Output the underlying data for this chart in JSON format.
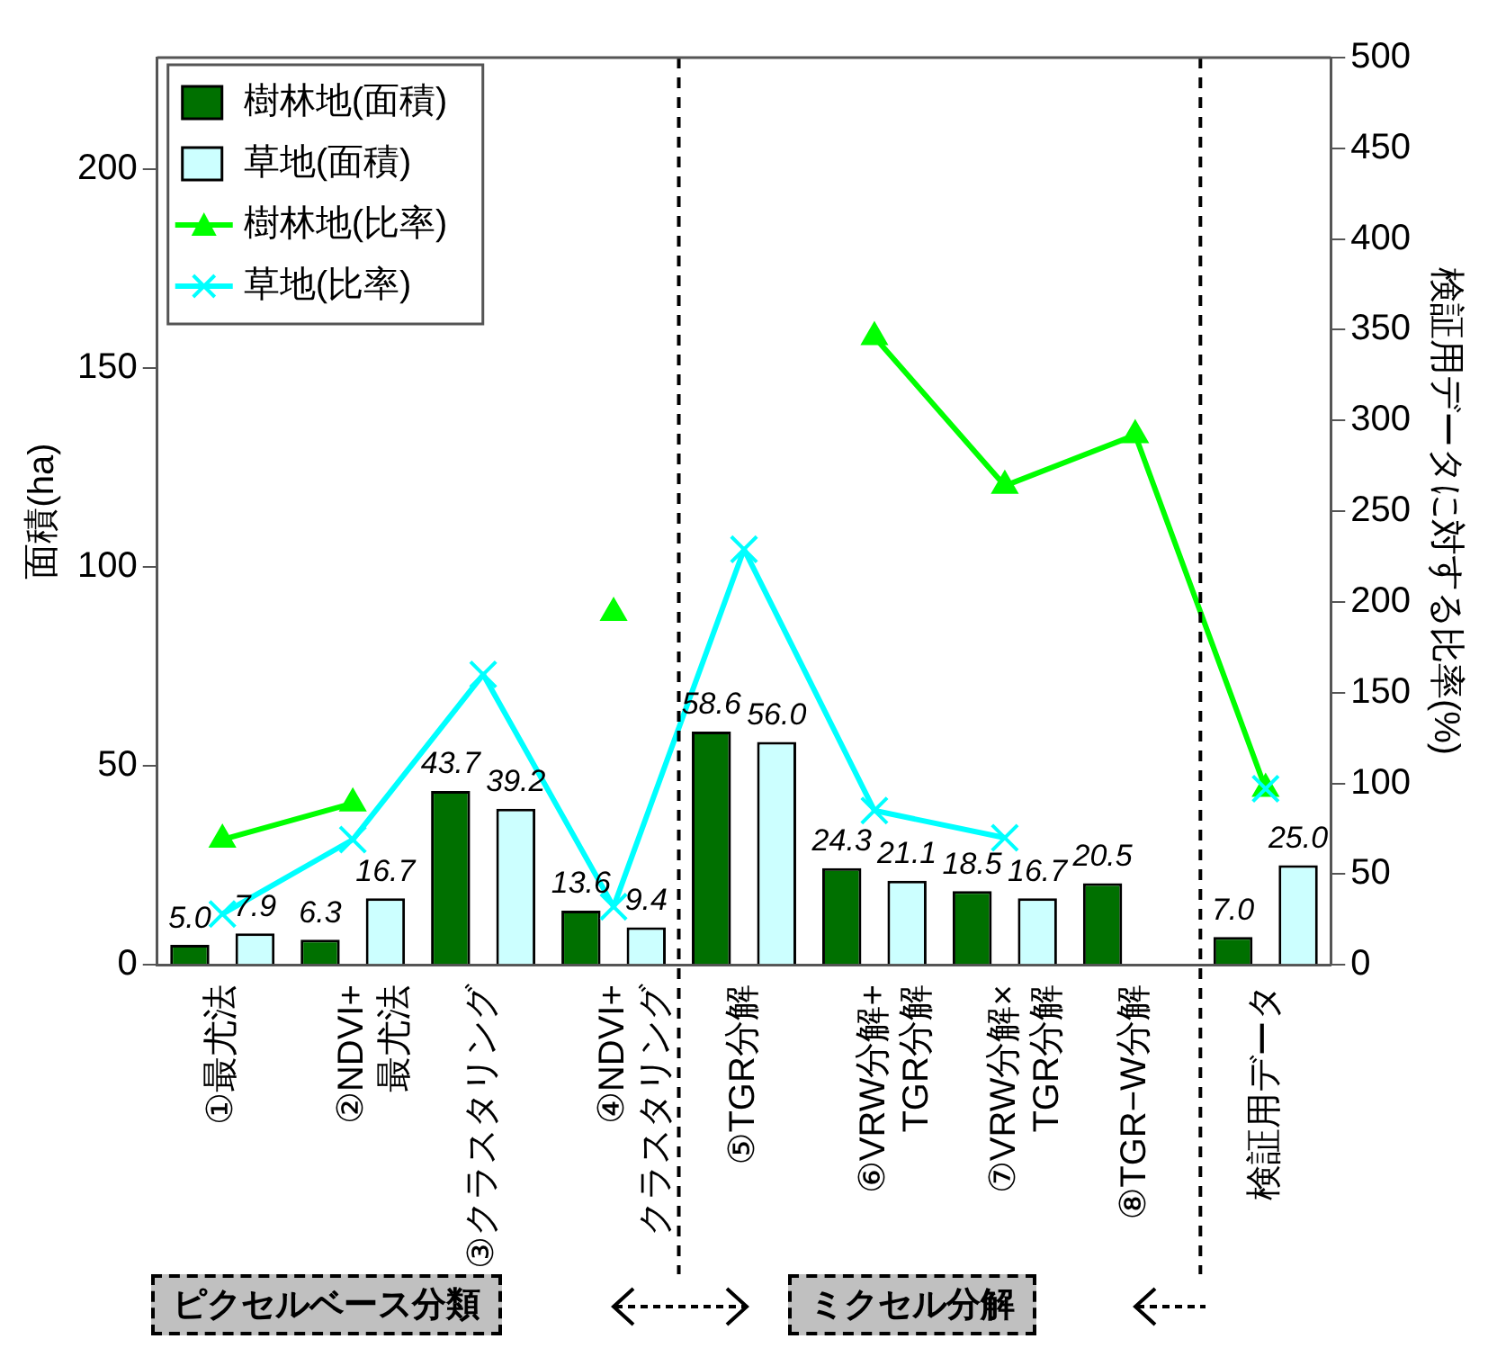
{
  "chart_data": {
    "type": "bar",
    "xlabel": null,
    "ylabel": "面積(ha)",
    "y2label": "検証用データに対する比率(%)",
    "categories": [
      "①最尤法",
      "②NDVI+\n最尤法",
      "③クラスタリング",
      "④NDVI+\nクラスタリング",
      "⑤TGR分解",
      "⑥VRW分解+\nTGR分解",
      "⑦VRW分解×\nTGR分解",
      "⑧TGR−W分解",
      "検証用データ"
    ],
    "series": [
      {
        "name": "樹林地(面積)",
        "color": "#007000",
        "values": [
          5.0,
          6.3,
          43.7,
          13.6,
          58.6,
          24.3,
          18.5,
          20.5,
          7.0
        ],
        "value_labels": [
          "5.0",
          "6.3",
          "43.7",
          "13.6",
          "58.6",
          "24.3",
          "18.5",
          "20.5",
          "7.0"
        ]
      },
      {
        "name": "草地(面積)",
        "color": "#ccffff",
        "values": [
          7.9,
          16.7,
          39.2,
          9.4,
          56.0,
          21.1,
          16.7,
          null,
          25.0
        ],
        "value_labels": [
          "7.9",
          "16.7",
          "39.2",
          "9.4",
          "56.0",
          "21.1",
          "16.7",
          null,
          "25.0"
        ]
      },
      {
        "name": "樹林地(比率)",
        "type": "line",
        "axis": "y2",
        "marker": "triangle",
        "color": "#00ff00",
        "values": [
          69,
          89,
          null,
          194,
          null,
          346,
          264,
          292,
          97
        ]
      },
      {
        "name": "草地(比率)",
        "type": "line",
        "axis": "y2",
        "marker": "cross",
        "color": "#00ffff",
        "values": [
          28,
          69,
          160,
          32,
          229,
          85,
          70,
          null,
          97
        ]
      }
    ],
    "ylim": [
      0,
      228
    ],
    "yticks": [
      0,
      50,
      100,
      150,
      200
    ],
    "y2lim": [
      0,
      500
    ],
    "y2ticks": [
      0,
      50,
      100,
      150,
      200,
      250,
      300,
      350,
      400,
      450,
      500
    ],
    "grid": false,
    "legend": "top left",
    "annotations": [
      "ピクセルベース分類",
      "ミクセル分解"
    ]
  }
}
